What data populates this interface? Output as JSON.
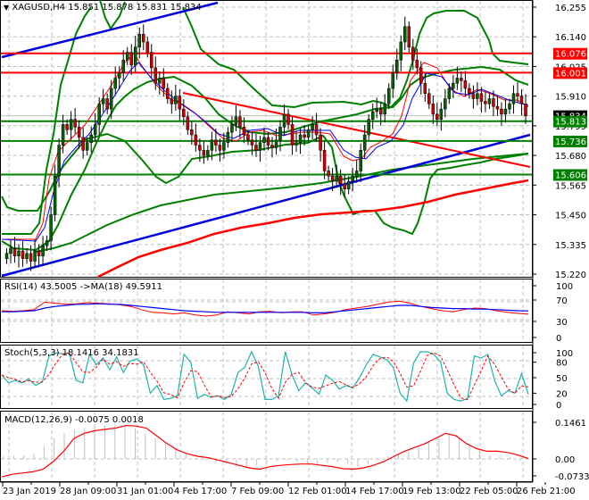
{
  "window": {
    "symbol_header": "XAGUSD,H4  15.851 15.878 15.831 15.834",
    "dropdown_icon": "triangle-down-icon"
  },
  "colors": {
    "bull_candle": "#006400",
    "bear_candle": "#cc0000",
    "resistance": "#ff0000",
    "support": "#008000",
    "trend_blue": "#0000dd",
    "bollinger": "#008000",
    "ma200": "#ff0000",
    "rsi": "#ff0000",
    "rsi_ma": "#0000ff",
    "stoch_main": "#20b2aa",
    "stoch_signal": "#ff0000",
    "macd_hist": "#c0c0c0",
    "macd_signal": "#ff0000",
    "grid": "#c0c0c0"
  },
  "price_scale": {
    "ticks": [
      "16.255",
      "16.140",
      "16.025",
      "15.910",
      "15.795",
      "15.680",
      "15.565",
      "15.450",
      "15.335",
      "15.220"
    ],
    "current_price": "15.834",
    "labels": [
      {
        "value": "16.076",
        "color": "#ff0000"
      },
      {
        "value": "16.001",
        "color": "#ff0000"
      },
      {
        "value": "15.813",
        "color": "#008000"
      },
      {
        "value": "15.736",
        "color": "#008000"
      },
      {
        "value": "15.606",
        "color": "#008000"
      }
    ]
  },
  "rsi_pane": {
    "header": "RSI(14) 43.5005  ->MA(18) 49.5911",
    "ticks": [
      "100",
      "70",
      "30",
      "0"
    ]
  },
  "stoch_pane": {
    "header": "Stoch(5,3,3) 18.1416 34.1831",
    "ticks": [
      "100",
      "80",
      "50",
      "20",
      "0"
    ]
  },
  "macd_pane": {
    "header": "MACD(12,26,9) -0.0075 0.0018",
    "ticks": [
      "0.1461",
      "0.00",
      "-0.0733"
    ]
  },
  "time_axis": {
    "labels": [
      "23 Jan 2019",
      "28 Jan 09:00",
      "31 Jan 01:00",
      "4 Feb 17:00",
      "7 Feb 09:00",
      "12 Feb 01:00",
      "14 Feb 17:00",
      "19 Feb 13:00",
      "22 Feb 05:00",
      "26 Feb 21:00"
    ]
  },
  "chart_data": [
    {
      "type": "candlestick",
      "title": "XAGUSD,H4",
      "ohlc_last": {
        "open": 15.851,
        "high": 15.878,
        "low": 15.831,
        "close": 15.834
      },
      "ylim": [
        15.2,
        16.27
      ],
      "y_ticks": [
        16.255,
        16.14,
        16.025,
        15.91,
        15.795,
        15.68,
        15.565,
        15.45,
        15.335,
        15.22
      ],
      "x_tick_labels": [
        "23 Jan 2019",
        "28 Jan 09:00",
        "31 Jan 01:00",
        "4 Feb 17:00",
        "7 Feb 09:00",
        "12 Feb 01:00",
        "14 Feb 17:00",
        "19 Feb 13:00",
        "22 Feb 05:00",
        "26 Feb 21:00"
      ],
      "horizontal_levels": [
        {
          "value": 16.076,
          "type": "resistance",
          "color": "red"
        },
        {
          "value": 16.001,
          "type": "resistance",
          "color": "red"
        },
        {
          "value": 15.813,
          "type": "support",
          "color": "green"
        },
        {
          "value": 15.736,
          "type": "support",
          "color": "green"
        },
        {
          "value": 15.606,
          "type": "support",
          "color": "green"
        }
      ],
      "trendlines": [
        {
          "color": "blue",
          "from": [
            "23 Jan 2019",
            16.08
          ],
          "to": [
            "4 Feb 17:00",
            16.27
          ],
          "note": "upper channel"
        },
        {
          "color": "blue",
          "from": [
            "23 Jan 2019",
            15.21
          ],
          "to": [
            "26 Feb 21:00",
            15.74
          ],
          "note": "lower rising trendline"
        },
        {
          "color": "red",
          "from": [
            "4 Feb 17:00",
            15.92
          ],
          "to": [
            "26 Feb 21:00",
            15.62
          ],
          "note": "descending trendline"
        }
      ],
      "close_approx": [
        {
          "x": "23 Jan 2019",
          "close": 15.3
        },
        {
          "x": "28 Jan 09:00",
          "close": 15.8
        },
        {
          "x": "31 Jan 01:00",
          "close": 16.08
        },
        {
          "x": "4 Feb 17:00",
          "close": 15.85
        },
        {
          "x": "7 Feb 09:00",
          "close": 15.75
        },
        {
          "x": "12 Feb 01:00",
          "close": 15.72
        },
        {
          "x": "14 Feb 17:00",
          "close": 15.57
        },
        {
          "x": "19 Feb 13:00",
          "close": 16.12
        },
        {
          "x": "22 Feb 05:00",
          "close": 15.92
        },
        {
          "x": "26 Feb 21:00",
          "close": 15.834
        }
      ]
    },
    {
      "type": "line",
      "title": "RSI(14) 43.5005 ->MA(18) 49.5911",
      "ylim": [
        0,
        100
      ],
      "y_ticks": [
        100,
        70,
        30,
        0
      ],
      "series": [
        {
          "name": "RSI(14)",
          "last": 43.5005,
          "values": [
            50,
            52,
            68,
            64,
            62,
            58,
            46,
            42,
            40,
            46,
            52,
            48,
            48,
            42,
            56,
            68,
            58,
            50,
            52,
            56,
            43.5
          ]
        },
        {
          "name": "MA(18)",
          "last": 49.5911,
          "values": [
            48,
            50,
            58,
            62,
            62,
            60,
            54,
            50,
            46,
            46,
            48,
            49,
            48,
            46,
            52,
            60,
            56,
            52,
            52,
            51,
            49.6
          ]
        }
      ]
    },
    {
      "type": "line",
      "title": "Stoch(5,3,3) 18.1416 34.1831",
      "ylim": [
        0,
        100
      ],
      "y_ticks": [
        100,
        80,
        50,
        20,
        0
      ],
      "series": [
        {
          "name": "%K",
          "last": 18.1416
        },
        {
          "name": "%D",
          "last": 34.1831
        }
      ]
    },
    {
      "type": "bar+line",
      "title": "MACD(12,26,9) -0.0075 0.0018",
      "ylim": [
        -0.0733,
        0.1461
      ],
      "y_ticks": [
        0.1461,
        0.0,
        -0.0733
      ],
      "series": [
        {
          "name": "MACD histogram",
          "last": -0.0075
        },
        {
          "name": "Signal",
          "last": 0.0018
        }
      ]
    }
  ]
}
